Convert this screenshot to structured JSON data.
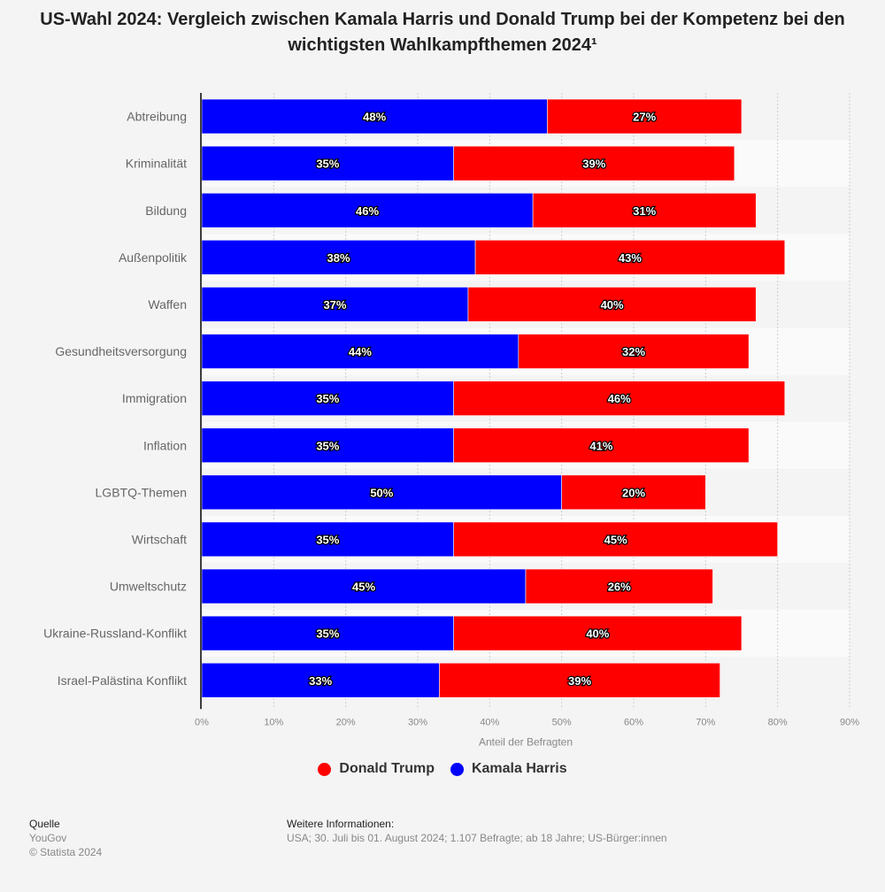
{
  "title": "US-Wahl 2024: Vergleich zwischen Kamala Harris und Donald Trump bei der Kompetenz bei den wichtigsten Wahlkampfthemen 2024¹",
  "chart_data": {
    "type": "bar",
    "orientation": "horizontal",
    "stacked": true,
    "title": "US-Wahl 2024: Vergleich zwischen Kamala Harris und Donald Trump bei der Kompetenz bei den wichtigsten Wahlkampfthemen 2024¹",
    "xlabel": "Anteil der Befragten",
    "ylabel": "",
    "xlim": [
      0,
      90
    ],
    "x_ticks": [
      "0%",
      "10%",
      "20%",
      "30%",
      "40%",
      "50%",
      "60%",
      "70%",
      "80%",
      "90%"
    ],
    "grid": true,
    "legend_position": "bottom",
    "categories": [
      "Abtreibung",
      "Kriminalität",
      "Bildung",
      "Außenpolitik",
      "Waffen",
      "Gesundheitsversorgung",
      "Immigration",
      "Inflation",
      "LGBTQ-Themen",
      "Wirtschaft",
      "Umweltschutz",
      "Ukraine-Russland-Konflikt",
      "Israel-Palästina Konflikt"
    ],
    "series": [
      {
        "name": "Kamala Harris",
        "color": "#0000ff",
        "values": [
          48,
          35,
          46,
          38,
          37,
          44,
          35,
          35,
          50,
          35,
          45,
          35,
          33
        ]
      },
      {
        "name": "Donald Trump",
        "color": "#ff0000",
        "values": [
          27,
          39,
          31,
          43,
          40,
          32,
          46,
          41,
          20,
          45,
          26,
          40,
          39
        ]
      }
    ]
  },
  "legend": [
    {
      "name": "Donald Trump",
      "color": "#ff0000"
    },
    {
      "name": "Kamala Harris",
      "color": "#0000ff"
    }
  ],
  "footer": {
    "source_heading": "Quelle",
    "source": "YouGov",
    "copyright": "© Statista 2024",
    "info_heading": "Weitere Informationen:",
    "info": "USA; 30. Juli bis 01. August 2024; 1.107 Befragte; ab 18 Jahre; US-Bürger:innen"
  }
}
